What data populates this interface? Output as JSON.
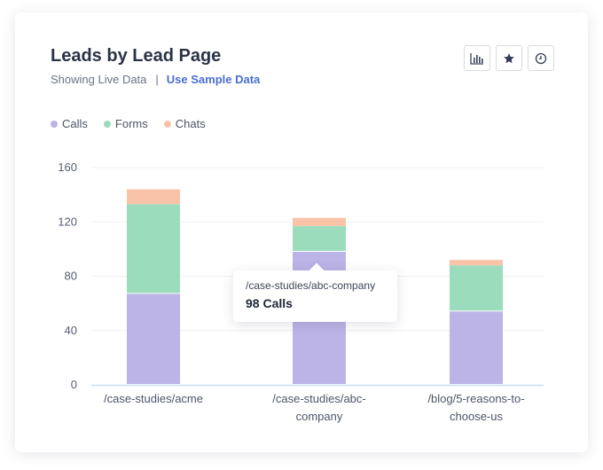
{
  "header": {
    "title": "Leads by Lead Page",
    "status_text": "Showing Live Data",
    "separator": "|",
    "sample_link": "Use Sample Data"
  },
  "toolbar": {
    "icons": [
      "bar-chart-icon",
      "star-icon",
      "clock-icon"
    ]
  },
  "colors": {
    "calls": "#bcb3e6",
    "forms": "#9bdcbd",
    "chats": "#f9c3a8",
    "axis": "#c9ddef",
    "grid": "#eef0f4",
    "tick_text": "#555d70"
  },
  "tooltip": {
    "label": "/case-studies/abc-company",
    "value_text": "98 Calls"
  },
  "chart_data": {
    "type": "bar",
    "stacked": true,
    "title": "Leads by Lead Page",
    "categories": [
      "/case-studies/acme",
      "/case-studies/abc-company",
      "/blog/5-reasons-to-choose-us"
    ],
    "category_lines": [
      [
        "/case-studies/acme"
      ],
      [
        "/case-studies/abc-",
        "company"
      ],
      [
        "/blog/5-reasons-to-",
        "choose-us"
      ]
    ],
    "series": [
      {
        "name": "Calls",
        "values": [
          67,
          98,
          54
        ]
      },
      {
        "name": "Forms",
        "values": [
          66,
          19,
          34
        ]
      },
      {
        "name": "Chats",
        "values": [
          11,
          6,
          4
        ]
      }
    ],
    "ylim": [
      0,
      160
    ],
    "yticks": [
      0,
      40,
      80,
      120,
      160
    ],
    "xlabel": "",
    "ylabel": "",
    "grid": true,
    "legend": "top-left"
  }
}
